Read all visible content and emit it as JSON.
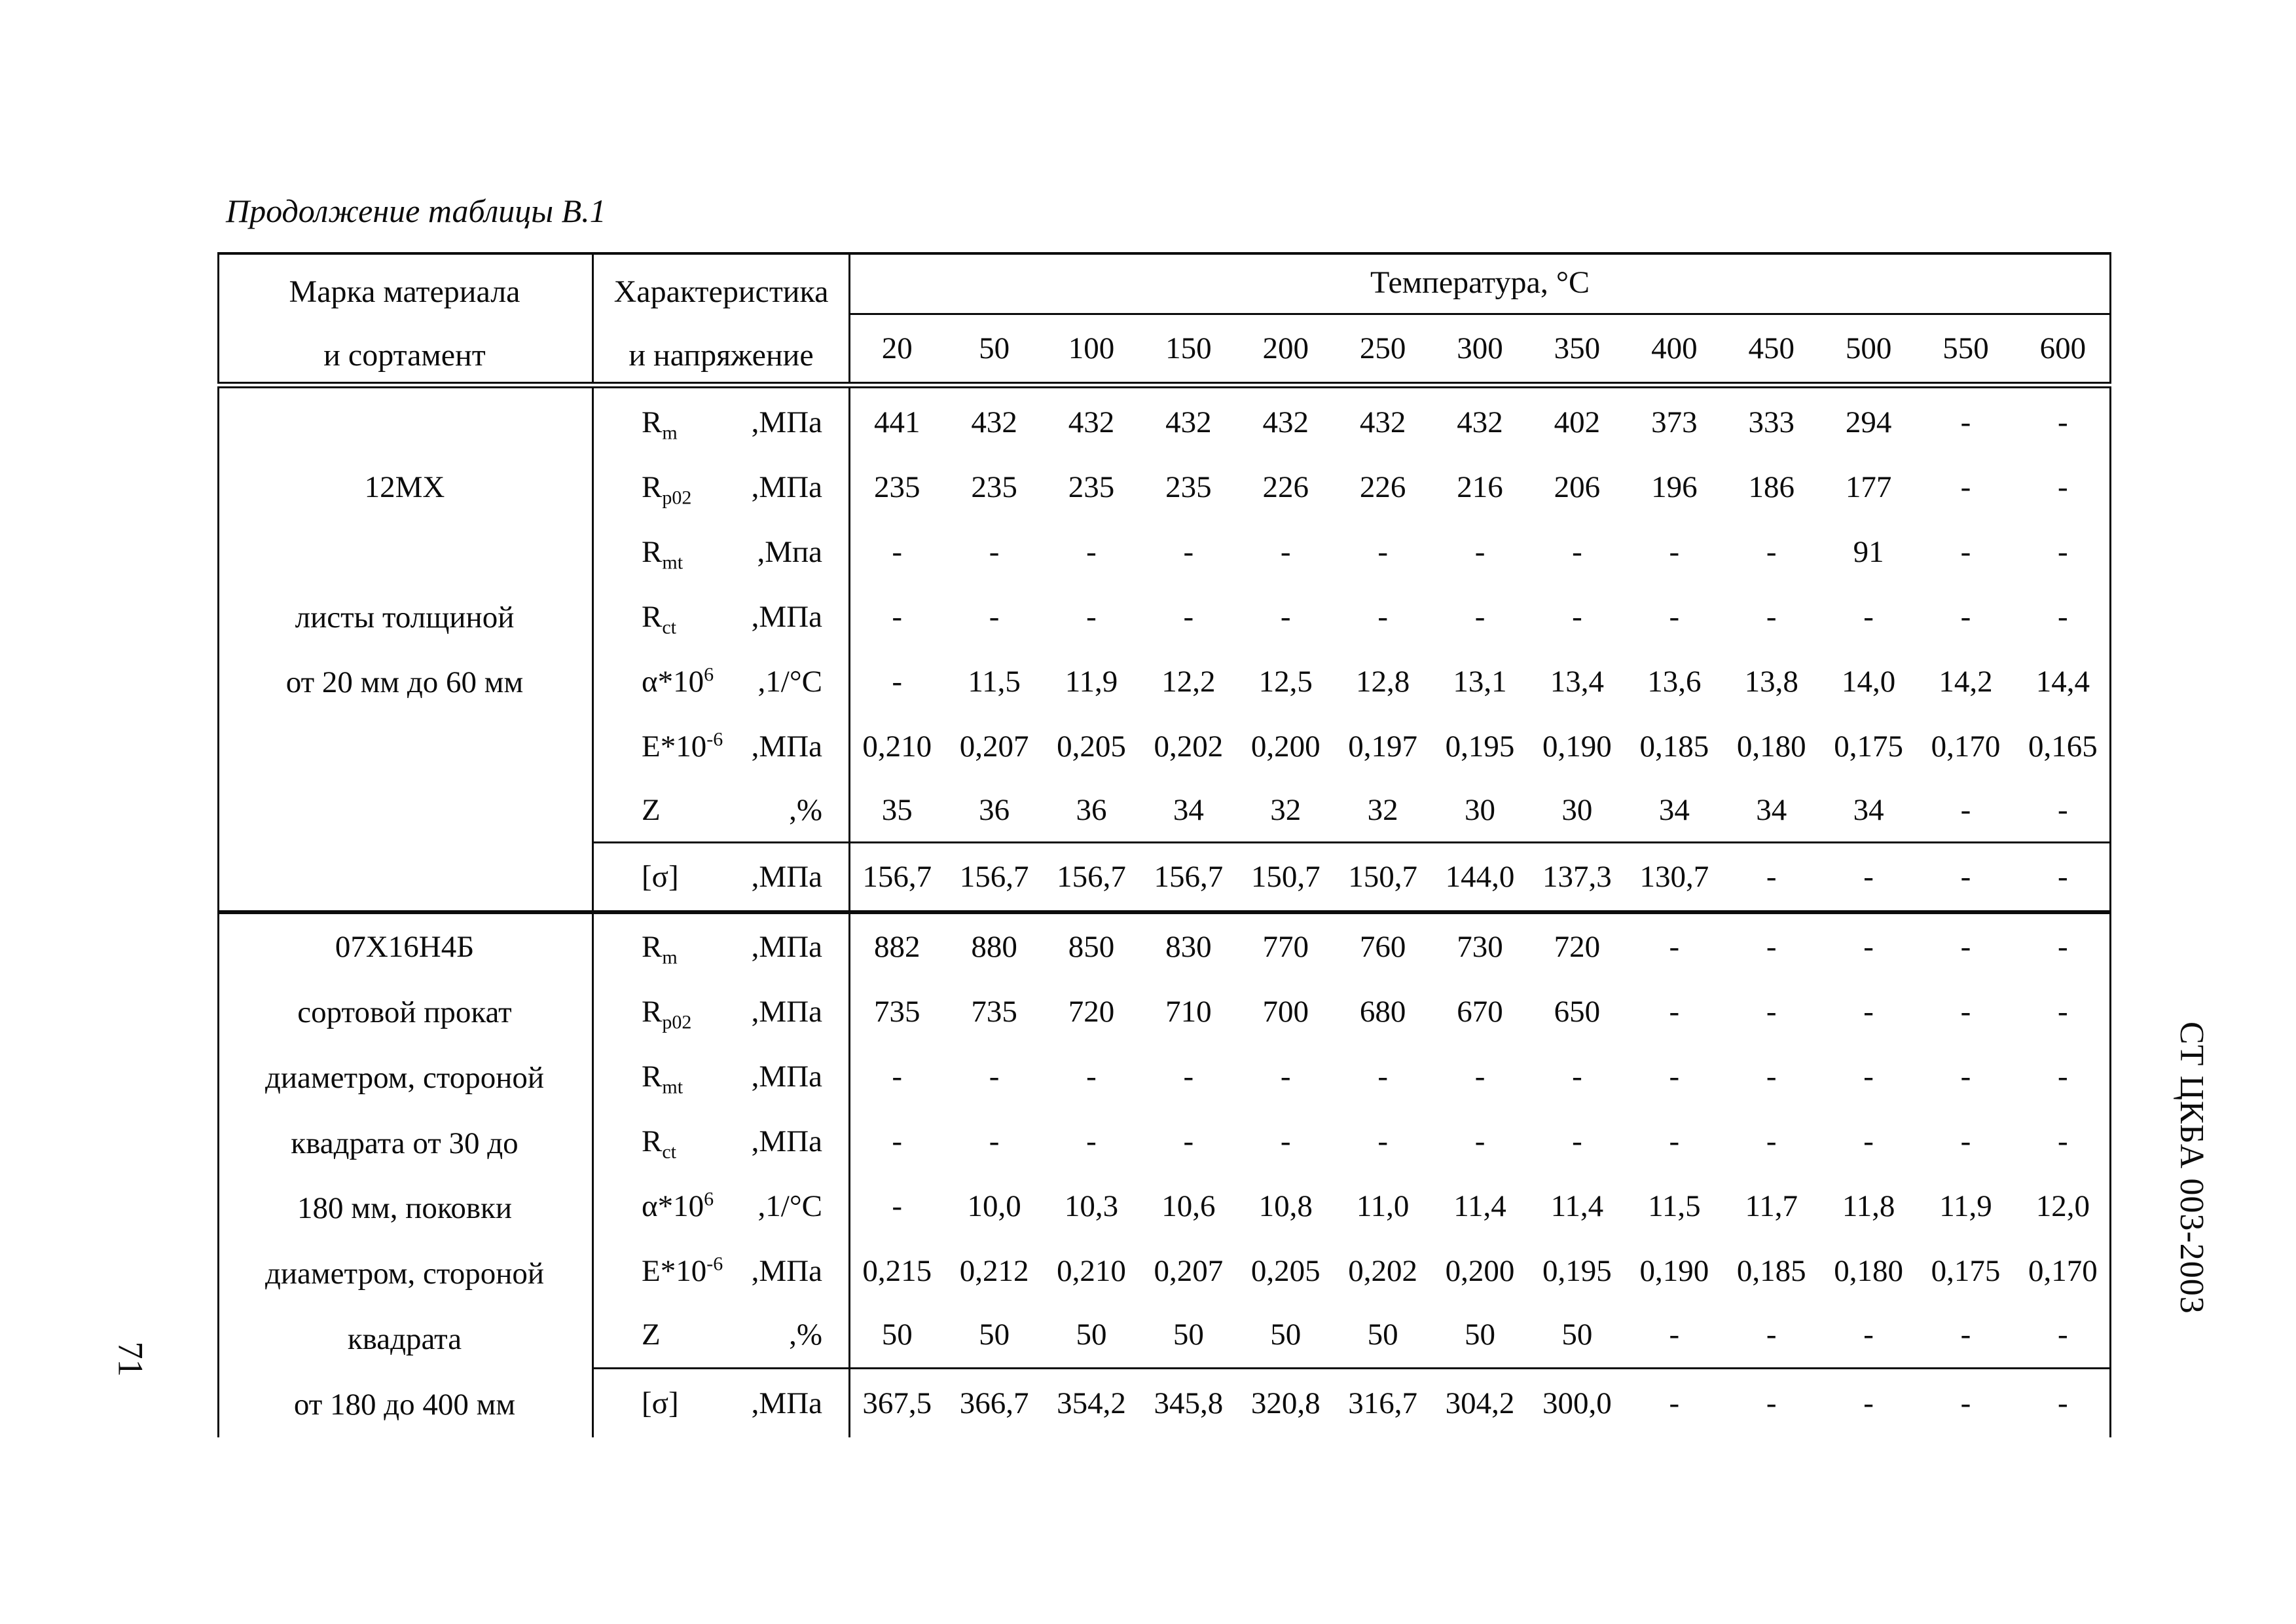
{
  "page": {
    "title": "Продолжение таблицы В.1",
    "page_number": "71",
    "side_label": "СТ ЦКБА 003-2003"
  },
  "table": {
    "header": {
      "col1_line1": "Марка материала",
      "col1_line2": "и сортамент",
      "col2_line1": "Характеристика",
      "col2_line2": "и напряжение",
      "temp_title": "Температура, °С",
      "temps": [
        "20",
        "50",
        "100",
        "150",
        "200",
        "250",
        "300",
        "350",
        "400",
        "450",
        "500",
        "550",
        "600"
      ]
    },
    "blocks": [
      {
        "material_lines": [
          "",
          "12МХ",
          "",
          "листы толщиной",
          "от 20 мм до 60 мм",
          "",
          "",
          ""
        ],
        "rows": [
          {
            "base": "R",
            "sub": "m",
            "sup": "",
            "unit": ",МПа",
            "values": [
              "441",
              "432",
              "432",
              "432",
              "432",
              "432",
              "432",
              "402",
              "373",
              "333",
              "294",
              "-",
              "-"
            ]
          },
          {
            "base": "R",
            "sub": "p02",
            "sup": "",
            "unit": ",МПа",
            "values": [
              "235",
              "235",
              "235",
              "235",
              "226",
              "226",
              "216",
              "206",
              "196",
              "186",
              "177",
              "-",
              "-"
            ]
          },
          {
            "base": "R",
            "sub": "mt",
            "sup": "",
            "unit": ",Мпа",
            "values": [
              "-",
              "-",
              "-",
              "-",
              "-",
              "-",
              "-",
              "-",
              "-",
              "-",
              "91",
              "-",
              "-"
            ]
          },
          {
            "base": "R",
            "sub": "ct",
            "sup": "",
            "unit": ",МПа",
            "values": [
              "-",
              "-",
              "-",
              "-",
              "-",
              "-",
              "-",
              "-",
              "-",
              "-",
              "-",
              "-",
              "-"
            ]
          },
          {
            "base": "α*10",
            "sub": "",
            "sup": "6",
            "unit": ",1/°С",
            "values": [
              "-",
              "11,5",
              "11,9",
              "12,2",
              "12,5",
              "12,8",
              "13,1",
              "13,4",
              "13,6",
              "13,8",
              "14,0",
              "14,2",
              "14,4"
            ]
          },
          {
            "base": "E*10",
            "sub": "",
            "sup": "-6",
            "unit": ",МПа",
            "values": [
              "0,210",
              "0,207",
              "0,205",
              "0,202",
              "0,200",
              "0,197",
              "0,195",
              "0,190",
              "0,185",
              "0,180",
              "0,175",
              "0,170",
              "0,165"
            ]
          },
          {
            "base": "Z",
            "sub": "",
            "sup": "",
            "unit": ",%",
            "values": [
              "35",
              "36",
              "36",
              "34",
              "32",
              "32",
              "30",
              "30",
              "34",
              "34",
              "34",
              "-",
              "-"
            ]
          },
          {
            "base": "[σ]",
            "sub": "",
            "sup": "",
            "unit": ",МПа",
            "values": [
              "156,7",
              "156,7",
              "156,7",
              "156,7",
              "150,7",
              "150,7",
              "144,0",
              "137,3",
              "130,7",
              "-",
              "-",
              "-",
              "-"
            ]
          }
        ]
      },
      {
        "material_lines": [
          "07Х16Н4Б",
          "сортовой прокат",
          "диаметром, стороной",
          "квадрата от 30 до",
          "180 мм, поковки",
          "диаметром, стороной",
          "квадрата",
          "от 180 до 400 мм"
        ],
        "rows": [
          {
            "base": "R",
            "sub": "m",
            "sup": "",
            "unit": ",МПа",
            "values": [
              "882",
              "880",
              "850",
              "830",
              "770",
              "760",
              "730",
              "720",
              "-",
              "-",
              "-",
              "-",
              "-"
            ]
          },
          {
            "base": "R",
            "sub": "p02",
            "sup": "",
            "unit": ",МПа",
            "values": [
              "735",
              "735",
              "720",
              "710",
              "700",
              "680",
              "670",
              "650",
              "-",
              "-",
              "-",
              "-",
              "-"
            ]
          },
          {
            "base": "R",
            "sub": "mt",
            "sup": "",
            "unit": ",МПа",
            "values": [
              "-",
              "-",
              "-",
              "-",
              "-",
              "-",
              "-",
              "-",
              "-",
              "-",
              "-",
              "-",
              "-"
            ]
          },
          {
            "base": "R",
            "sub": "ct",
            "sup": "",
            "unit": ",МПа",
            "values": [
              "-",
              "-",
              "-",
              "-",
              "-",
              "-",
              "-",
              "-",
              "-",
              "-",
              "-",
              "-",
              "-"
            ]
          },
          {
            "base": "α*10",
            "sub": "",
            "sup": "6",
            "unit": ",1/°С",
            "values": [
              "-",
              "10,0",
              "10,3",
              "10,6",
              "10,8",
              "11,0",
              "11,4",
              "11,4",
              "11,5",
              "11,7",
              "11,8",
              "11,9",
              "12,0"
            ]
          },
          {
            "base": "E*10",
            "sub": "",
            "sup": "-6",
            "unit": ",МПа",
            "values": [
              "0,215",
              "0,212",
              "0,210",
              "0,207",
              "0,205",
              "0,202",
              "0,200",
              "0,195",
              "0,190",
              "0,185",
              "0,180",
              "0,175",
              "0,170"
            ]
          },
          {
            "base": "Z",
            "sub": "",
            "sup": "",
            "unit": ",%",
            "values": [
              "50",
              "50",
              "50",
              "50",
              "50",
              "50",
              "50",
              "50",
              "-",
              "-",
              "-",
              "-",
              "-"
            ]
          },
          {
            "base": "[σ]",
            "sub": "",
            "sup": "",
            "unit": ",МПа",
            "values": [
              "367,5",
              "366,7",
              "354,2",
              "345,8",
              "320,8",
              "316,7",
              "304,2",
              "300,0",
              "-",
              "-",
              "-",
              "-",
              "-"
            ]
          }
        ]
      }
    ]
  }
}
